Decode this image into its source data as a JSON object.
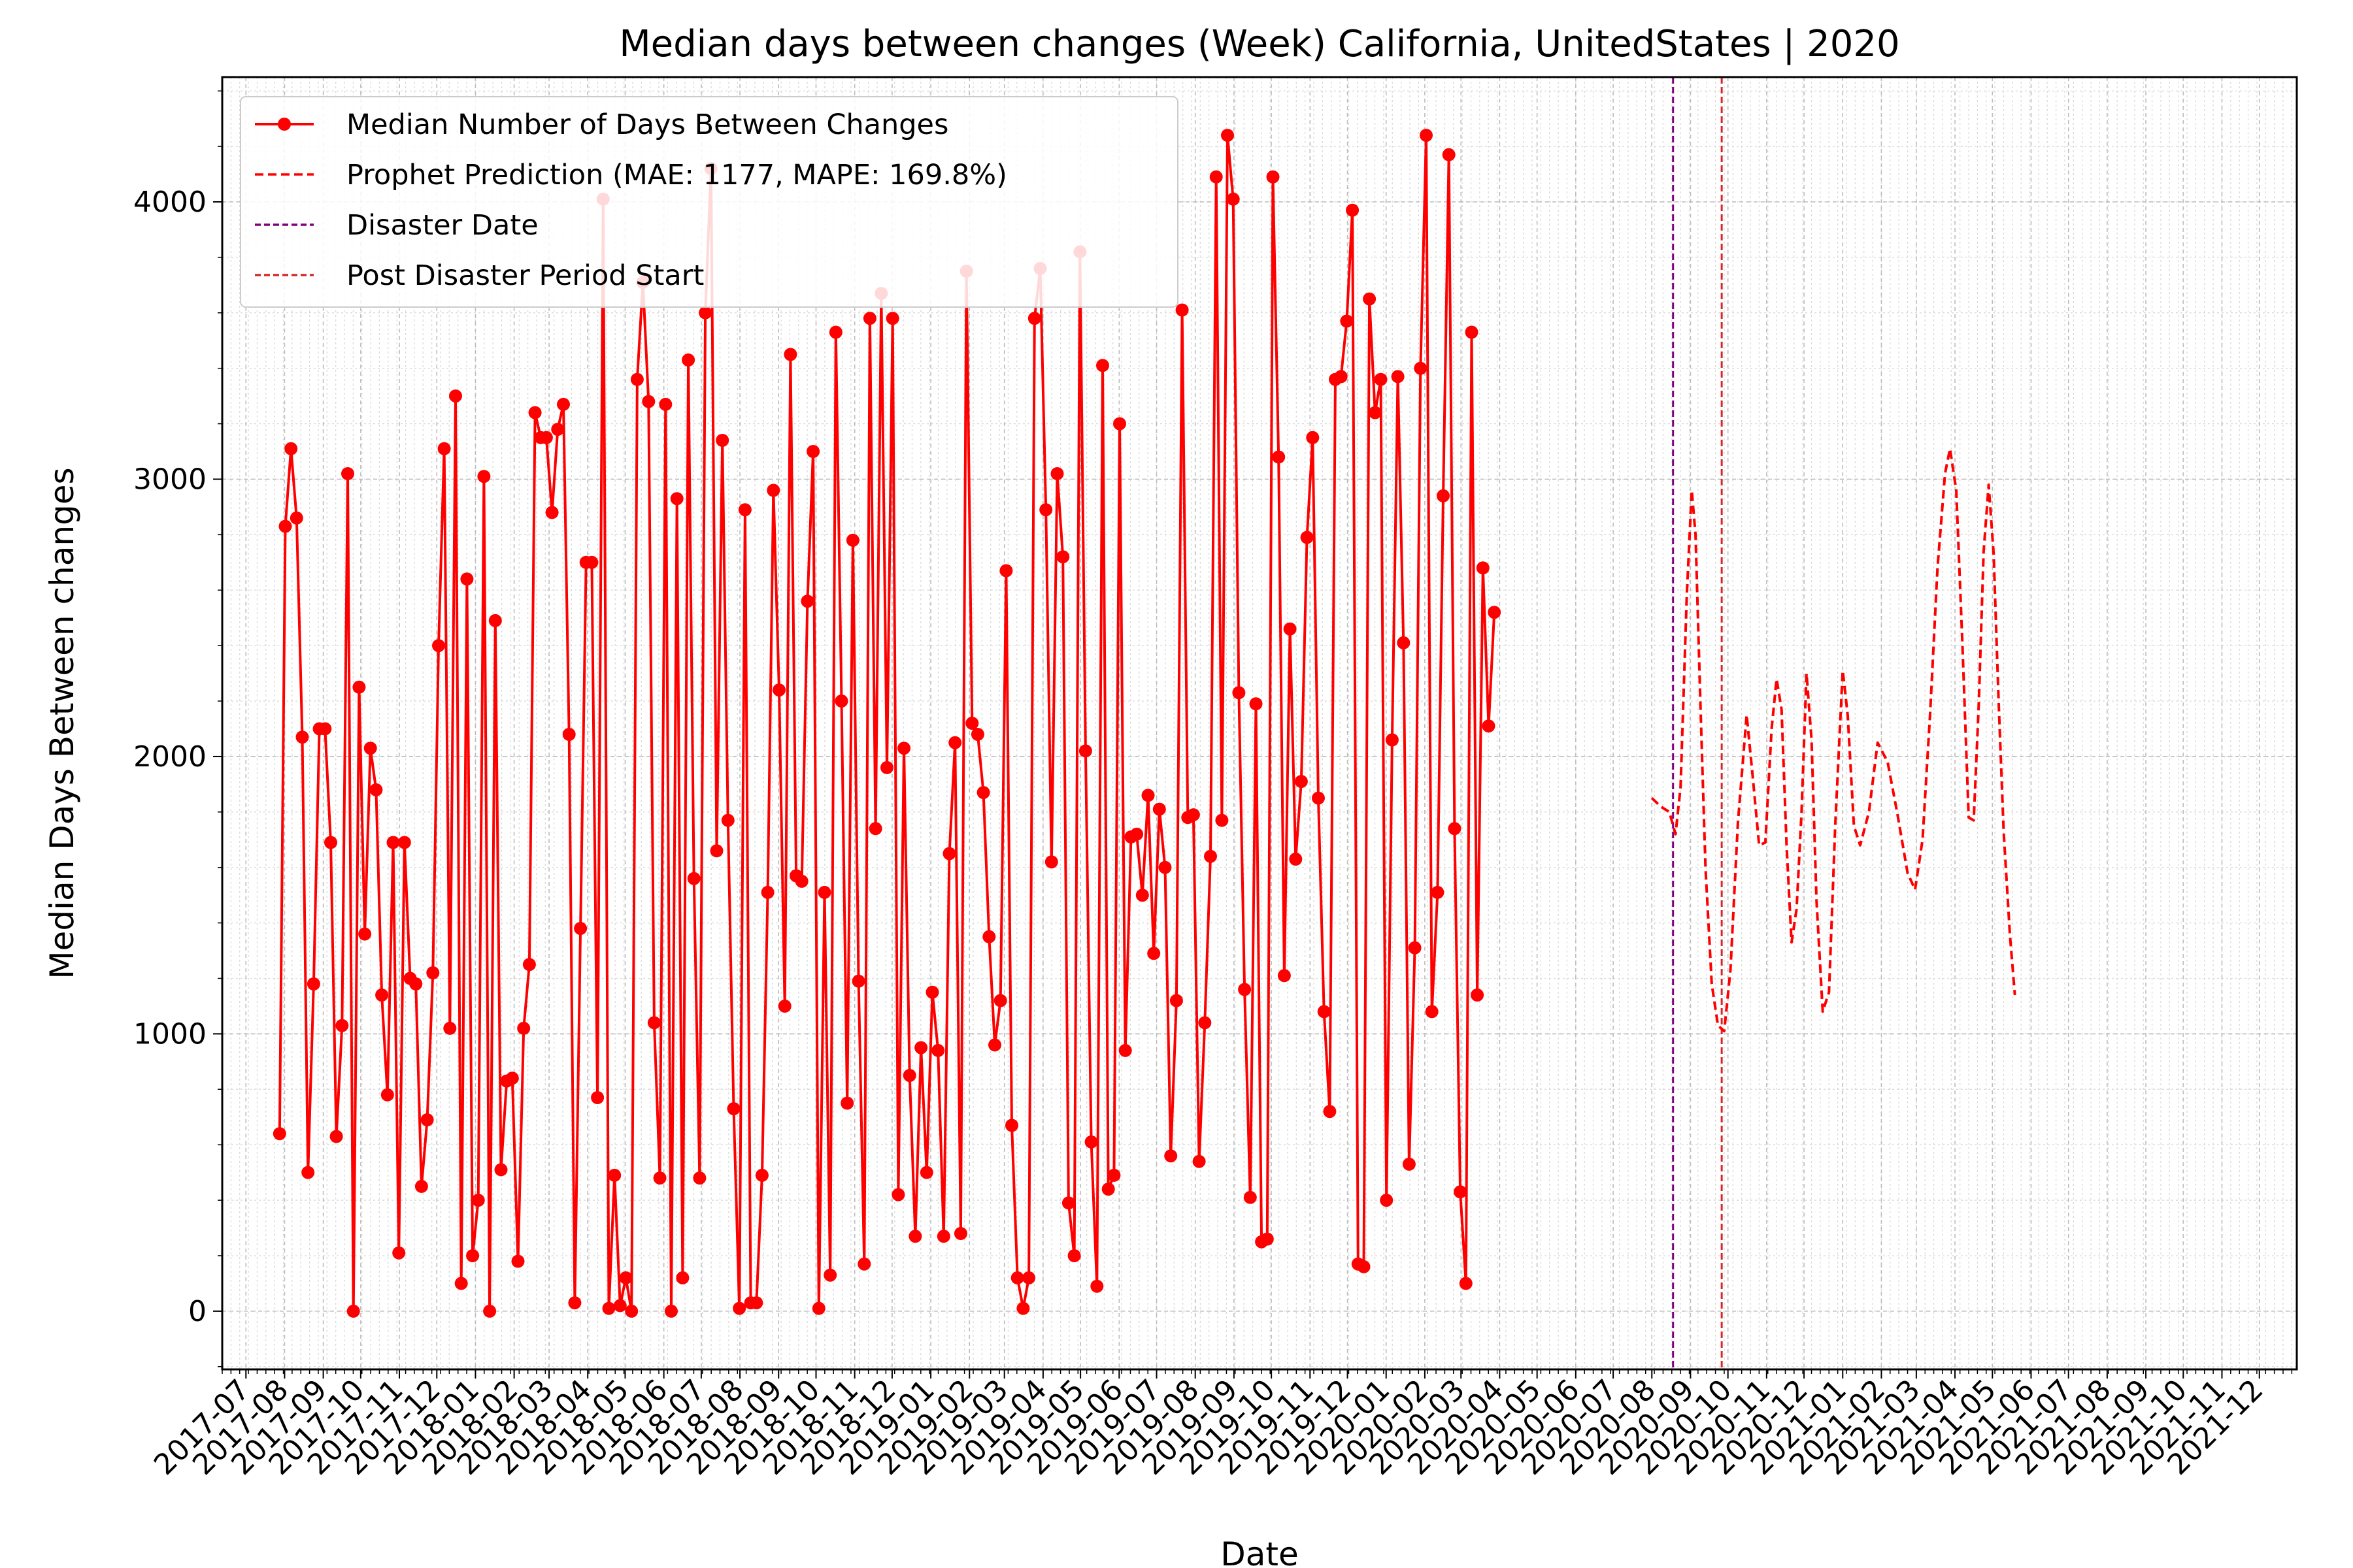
{
  "chart_data": {
    "type": "line",
    "title": "Median days between changes (Week) California, UnitedStates | 2020",
    "xlabel": "Date",
    "ylabel": "Median Days Between changes",
    "xlim": [
      "2017-06-12",
      "2021-12-31"
    ],
    "ylim": [
      -210,
      4450
    ],
    "y_ticks": [
      0,
      1000,
      2000,
      3000,
      4000
    ],
    "x_ticks": [
      "2017-07",
      "2017-08",
      "2017-09",
      "2017-10",
      "2017-11",
      "2017-12",
      "2018-01",
      "2018-02",
      "2018-03",
      "2018-04",
      "2018-05",
      "2018-06",
      "2018-07",
      "2018-08",
      "2018-09",
      "2018-10",
      "2018-11",
      "2018-12",
      "2019-01",
      "2019-02",
      "2019-03",
      "2019-04",
      "2019-05",
      "2019-06",
      "2019-07",
      "2019-08",
      "2019-09",
      "2019-10",
      "2019-11",
      "2019-12",
      "2020-01",
      "2020-02",
      "2020-03",
      "2020-04",
      "2020-05",
      "2020-06",
      "2020-07",
      "2020-08",
      "2020-09",
      "2020-10",
      "2020-11",
      "2020-12",
      "2021-01",
      "2021-02",
      "2021-03",
      "2021-04",
      "2021-05",
      "2021-06",
      "2021-07",
      "2021-08",
      "2021-09",
      "2021-10",
      "2021-11",
      "2021-12"
    ],
    "grid": true,
    "legend_position": "top-left",
    "legend": [
      {
        "label": "Median Number of Days Between Changes",
        "style": "line-marker",
        "color": "#ff0000"
      },
      {
        "label": "Prophet Prediction (MAE: 1177, MAPE: 169.8%)",
        "style": "dashed",
        "color": "#ff0000"
      },
      {
        "label": "Disaster Date",
        "style": "dashed",
        "color": "#800080"
      },
      {
        "label": "Post Disaster Period Start",
        "style": "dashed",
        "color": "#d62728"
      }
    ],
    "vlines": [
      {
        "name": "Disaster Date",
        "date": "2020-08-18",
        "color": "#800080"
      },
      {
        "name": "Post Disaster Period Start",
        "date": "2020-09-26",
        "color": "#d62728"
      }
    ],
    "series": [
      {
        "name": "Median Number of Days Between Changes",
        "color": "#ff0000",
        "style": "line-marker",
        "start": "2017-07-28",
        "interval_days": 4.55,
        "values": [
          640,
          2830,
          3110,
          2860,
          2070,
          500,
          1180,
          2100,
          2100,
          1690,
          630,
          1030,
          3020,
          0,
          2250,
          1360,
          2030,
          1880,
          1140,
          780,
          1690,
          210,
          1690,
          1200,
          1180,
          450,
          690,
          1220,
          2400,
          3110,
          1020,
          3300,
          100,
          2640,
          200,
          400,
          3010,
          0,
          2490,
          510,
          830,
          840,
          180,
          1020,
          1250,
          3240,
          3150,
          3150,
          2880,
          3180,
          3270,
          2080,
          30,
          1380,
          2700,
          2700,
          770,
          4010,
          10,
          490,
          20,
          120,
          0,
          3360,
          3710,
          3280,
          1040,
          480,
          3270,
          0,
          2930,
          120,
          3430,
          1560,
          480,
          3600,
          4120,
          1660,
          3140,
          1770,
          730,
          10,
          2890,
          30,
          30,
          490,
          1510,
          2960,
          2240,
          1100,
          3450,
          1570,
          1550,
          2560,
          3100,
          10,
          1510,
          130,
          3530,
          2200,
          750,
          2780,
          1190,
          170,
          3580,
          1740,
          3670,
          1960,
          3580,
          420,
          2030,
          850,
          270,
          950,
          500,
          1150,
          940,
          270,
          1650,
          2050,
          280,
          3750,
          2120,
          2080,
          1870,
          1350,
          960,
          1120,
          2670,
          670,
          120,
          10,
          120,
          3580,
          3760,
          2890,
          1620,
          3020,
          2720,
          390,
          200,
          3820,
          2020,
          610,
          90,
          3410,
          440,
          490,
          3200,
          940,
          1710,
          1720,
          1500,
          1860,
          1290,
          1810,
          1600,
          560,
          1120,
          3610,
          1780,
          1790,
          540,
          1040,
          1640,
          4090,
          1770,
          4240,
          4010,
          2230,
          1160,
          410,
          2190,
          250,
          260,
          4090,
          3080,
          1210,
          2460,
          1630,
          1910,
          2790,
          3150,
          1850,
          1080,
          720,
          3360,
          3370,
          3570,
          3970,
          170,
          160,
          3650,
          3240,
          3360,
          400,
          2060,
          3370,
          2410,
          530,
          1310,
          3400,
          4240,
          1080,
          1510,
          2940,
          4170,
          1740,
          430,
          100,
          3530,
          1140,
          2680,
          2110,
          2520
        ]
      },
      {
        "name": "Prophet Prediction (MAE: 1177, MAPE: 169.8%)",
        "color": "#ff0000",
        "style": "dashed",
        "points": [
          [
            "2020-08-01",
            1850
          ],
          [
            "2020-08-08",
            1820
          ],
          [
            "2020-08-15",
            1800
          ],
          [
            "2020-08-20",
            1720
          ],
          [
            "2020-08-24",
            1890
          ],
          [
            "2020-08-29",
            2580
          ],
          [
            "2020-09-02",
            2960
          ],
          [
            "2020-09-05",
            2800
          ],
          [
            "2020-09-09",
            2180
          ],
          [
            "2020-09-13",
            1600
          ],
          [
            "2020-09-18",
            1180
          ],
          [
            "2020-09-23",
            1030
          ],
          [
            "2020-09-28",
            1010
          ],
          [
            "2020-10-03",
            1230
          ],
          [
            "2020-10-09",
            1760
          ],
          [
            "2020-10-16",
            2150
          ],
          [
            "2020-10-21",
            1920
          ],
          [
            "2020-10-26",
            1680
          ],
          [
            "2020-10-31",
            1690
          ],
          [
            "2020-11-05",
            2100
          ],
          [
            "2020-11-09",
            2280
          ],
          [
            "2020-11-13",
            2170
          ],
          [
            "2020-11-17",
            1680
          ],
          [
            "2020-11-21",
            1330
          ],
          [
            "2020-11-25",
            1450
          ],
          [
            "2020-11-29",
            1800
          ],
          [
            "2020-12-03",
            2300
          ],
          [
            "2020-12-07",
            2060
          ],
          [
            "2020-12-11",
            1480
          ],
          [
            "2020-12-16",
            1080
          ],
          [
            "2020-12-21",
            1150
          ],
          [
            "2020-12-26",
            1750
          ],
          [
            "2021-01-01",
            2310
          ],
          [
            "2021-01-05",
            2150
          ],
          [
            "2021-01-10",
            1750
          ],
          [
            "2021-01-15",
            1680
          ],
          [
            "2021-01-22",
            1800
          ],
          [
            "2021-01-29",
            2050
          ],
          [
            "2021-02-06",
            1980
          ],
          [
            "2021-02-14",
            1790
          ],
          [
            "2021-02-22",
            1580
          ],
          [
            "2021-02-28",
            1520
          ],
          [
            "2021-03-06",
            1700
          ],
          [
            "2021-03-12",
            2150
          ],
          [
            "2021-03-18",
            2680
          ],
          [
            "2021-03-24",
            3020
          ],
          [
            "2021-03-28",
            3110
          ],
          [
            "2021-04-02",
            2960
          ],
          [
            "2021-04-07",
            2400
          ],
          [
            "2021-04-12",
            1780
          ],
          [
            "2021-04-16",
            1770
          ],
          [
            "2021-04-20",
            2180
          ],
          [
            "2021-04-24",
            2740
          ],
          [
            "2021-04-28",
            2980
          ],
          [
            "2021-05-02",
            2730
          ],
          [
            "2021-05-06",
            2200
          ],
          [
            "2021-05-10",
            1730
          ],
          [
            "2021-05-15",
            1360
          ],
          [
            "2021-05-19",
            1140
          ]
        ]
      }
    ]
  }
}
